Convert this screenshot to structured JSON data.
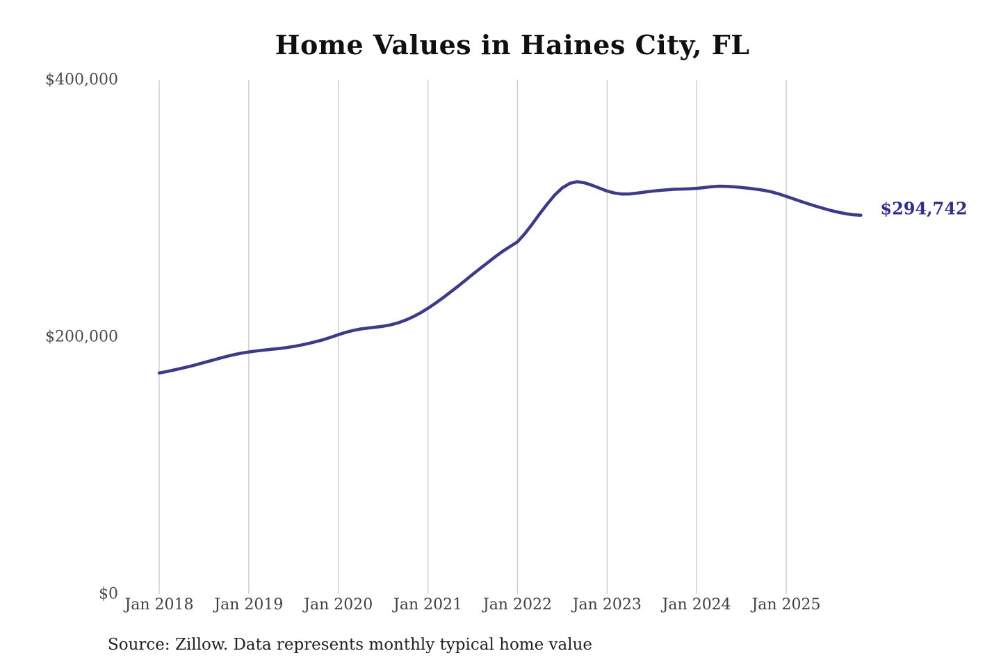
{
  "page": {
    "title": "Home Values in Haines City, FL",
    "source_note": "Source: Zillow. Data represents monthly typical home value",
    "current_value_label": "$294,742"
  },
  "colors": {
    "line": "#3b3a8f",
    "value_label": "#322e91",
    "gridline": "#cccccc",
    "title_text": "#101010",
    "axis_text": "#4a4a4a",
    "source_text": "#1f1f1f",
    "background": "#ffffff"
  },
  "chart_data": {
    "type": "line",
    "title": "Home Values in Haines City, FL",
    "x_unit": "month",
    "x_range_start": "Jan 2018",
    "x_range_end": "Nov 2025",
    "x_tick_labels": [
      "Jan 2018",
      "Jan 2019",
      "Jan 2020",
      "Jan 2021",
      "Jan 2022",
      "Jan 2023",
      "Jan 2024",
      "Jan 2025"
    ],
    "y_tick_labels": [
      "$0",
      "$200,000",
      "$400,000"
    ],
    "y_tick_values": [
      0,
      200000,
      400000
    ],
    "ylim": [
      0,
      400000
    ],
    "grid": "vertical-only",
    "legend": "none",
    "final_value": 294742,
    "series": [
      {
        "name": "Typical home value",
        "values": [
          172000,
          173100,
          174300,
          175600,
          177000,
          178500,
          180100,
          181700,
          183300,
          184800,
          186200,
          187400,
          188300,
          189100,
          189800,
          190400,
          191000,
          191700,
          192600,
          193700,
          195000,
          196400,
          197900,
          199800,
          201800,
          203600,
          205100,
          206200,
          207000,
          207600,
          208300,
          209400,
          211000,
          213100,
          215700,
          218700,
          222300,
          226200,
          230400,
          234800,
          239300,
          244000,
          248700,
          253300,
          257800,
          262300,
          266600,
          270300,
          274000,
          280500,
          288000,
          296000,
          303500,
          310500,
          316000,
          319500,
          320800,
          319900,
          318000,
          315800,
          313500,
          312000,
          311200,
          311300,
          311900,
          312700,
          313400,
          314000,
          314500,
          314900,
          315100,
          315300,
          315600,
          316200,
          316900,
          317300,
          317200,
          316800,
          316300,
          315700,
          315000,
          314100,
          312900,
          311300,
          309400,
          307400,
          305400,
          303500,
          301700,
          300000,
          298400,
          297000,
          295900,
          295100,
          294742
        ]
      }
    ]
  }
}
